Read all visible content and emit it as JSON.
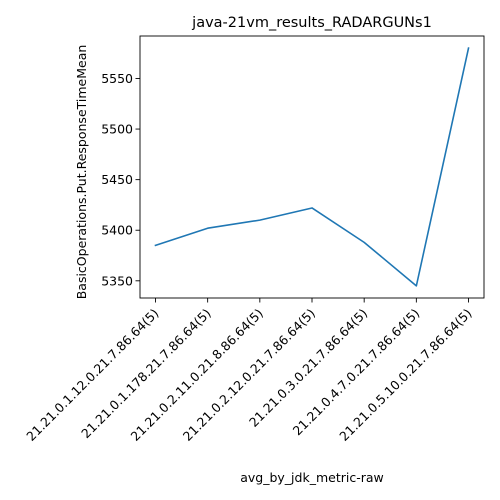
{
  "chart_data": {
    "type": "line",
    "title": "java-21vm_results_RADARGUNs1",
    "xlabel": "avg_by_jdk_metric-raw",
    "ylabel": "BasicOperations.Put.ResponseTimeMean",
    "categories": [
      "21.21.0.1.12.0.21.7.86.64(5)",
      "21.21.0.1.178.21.7.86.64(5)",
      "21.21.0.2.11.0.21.8.86.64(5)",
      "21.21.0.2.12.0.21.7.86.64(5)",
      "21.21.0.3.0.21.7.86.64(5)",
      "21.21.0.4.7.0.21.7.86.64(5)",
      "21.21.0.5.10.0.21.7.86.64(5)"
    ],
    "series": [
      {
        "name": "BasicOperations.Put.ResponseTimeMean",
        "values": [
          5385,
          5402,
          5410,
          5422,
          5388,
          5345,
          5580
        ],
        "color": "#1f77b4"
      }
    ],
    "ylim": [
      5333,
      5592
    ],
    "yticks": [
      5350,
      5400,
      5450,
      5500,
      5550
    ],
    "ytick_labels": [
      "5350",
      "5400",
      "5450",
      "5500",
      "5550"
    ],
    "grid": false,
    "legend": "none"
  }
}
